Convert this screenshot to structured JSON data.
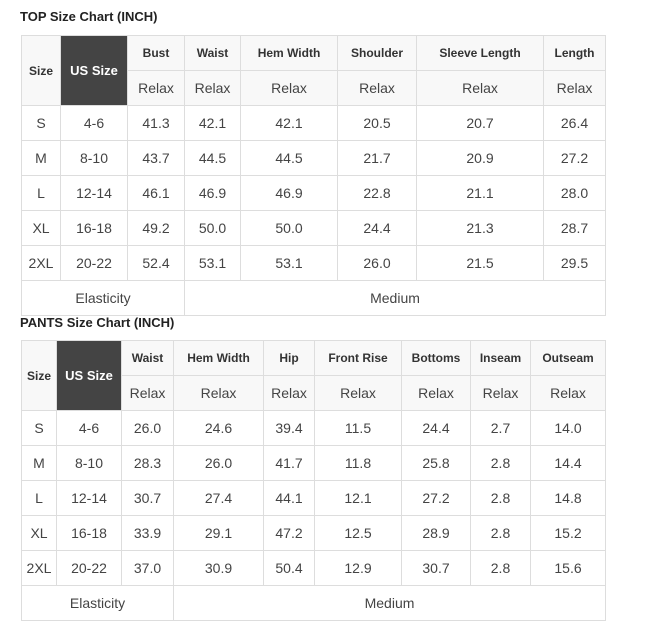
{
  "top": {
    "title": "TOP Size Chart (INCH)",
    "headers": [
      "Size",
      "US Size",
      "Bust",
      "Waist",
      "Hem Width",
      "Shoulder",
      "Sleeve Length",
      "Length"
    ],
    "sub": "Relax",
    "rows": [
      [
        "S",
        "4-6",
        "41.3",
        "42.1",
        "42.1",
        "20.5",
        "20.7",
        "26.4"
      ],
      [
        "M",
        "8-10",
        "43.7",
        "44.5",
        "44.5",
        "21.7",
        "20.9",
        "27.2"
      ],
      [
        "L",
        "12-14",
        "46.1",
        "46.9",
        "46.9",
        "22.8",
        "21.1",
        "28.0"
      ],
      [
        "XL",
        "16-18",
        "49.2",
        "50.0",
        "50.0",
        "24.4",
        "21.3",
        "28.7"
      ],
      [
        "2XL",
        "20-22",
        "52.4",
        "53.1",
        "53.1",
        "26.0",
        "21.5",
        "29.5"
      ]
    ],
    "elasticity_label": "Elasticity",
    "elasticity_value": "Medium"
  },
  "pants": {
    "title": "PANTS Size Chart (INCH)",
    "headers": [
      "Size",
      "US Size",
      "Waist",
      "Hem Width",
      "Hip",
      "Front Rise",
      "Bottoms",
      "Inseam",
      "Outseam"
    ],
    "sub": "Relax",
    "rows": [
      [
        "S",
        "4-6",
        "26.0",
        "24.6",
        "39.4",
        "11.5",
        "24.4",
        "2.7",
        "14.0"
      ],
      [
        "M",
        "8-10",
        "28.3",
        "26.0",
        "41.7",
        "11.8",
        "25.8",
        "2.8",
        "14.4"
      ],
      [
        "L",
        "12-14",
        "30.7",
        "27.4",
        "44.1",
        "12.1",
        "27.2",
        "2.8",
        "14.8"
      ],
      [
        "XL",
        "16-18",
        "33.9",
        "29.1",
        "47.2",
        "12.5",
        "28.9",
        "2.8",
        "15.2"
      ],
      [
        "2XL",
        "20-22",
        "37.0",
        "30.9",
        "50.4",
        "12.9",
        "30.7",
        "2.8",
        "15.6"
      ]
    ],
    "elasticity_label": "Elasticity",
    "elasticity_value": "Medium"
  }
}
